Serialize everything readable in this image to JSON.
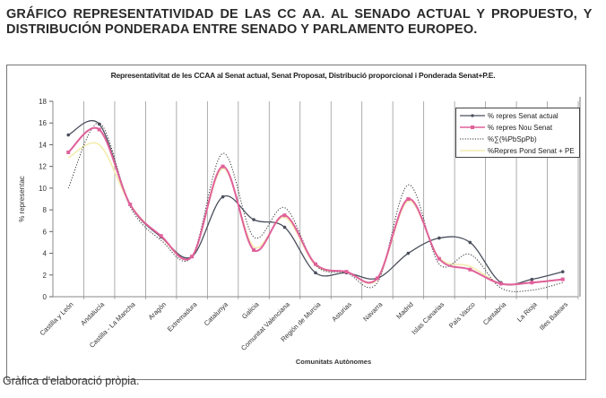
{
  "document": {
    "title_line1": "GRÁFICO REPRESENTATIVIDAD DE LAS CC AA. AL SENADO ACTUAL Y PROPUESTO, Y",
    "title_line2": "DISTRIBUCIÓN PONDERADA ENTRE SENADO Y PARLAMENTO EUROPEO.",
    "caption": "Gràfica d'elaboració pròpia."
  },
  "chart_data": {
    "type": "line",
    "title": "Representativitat de les CCAA al Senat actual, Senat Proposat, Distribució proporcional i Ponderada Senat+P.E.",
    "xlabel": "Comunitats Autònomes",
    "ylabel": "% representac",
    "ylim": [
      0,
      18
    ],
    "yticks": [
      0,
      2,
      4,
      6,
      8,
      10,
      12,
      14,
      16,
      18
    ],
    "grid": "vertical",
    "legend_position": "top-right",
    "categories": [
      "Castilla y León",
      "Andalucía",
      "Castilla - La Mancha",
      "Aragón",
      "Extremadura",
      "Catalunya",
      "Galicia",
      "Comunitat Valenciana",
      "Región de Murcia",
      "Asturias",
      "Navarra",
      "Madrid",
      "Islas Canarias",
      "País Vasco",
      "Cantabria",
      "La Rioja",
      "Illes Balears"
    ],
    "series": [
      {
        "name": "% repres Senat actual",
        "color": "#4a4f5c",
        "style": "solid-marker",
        "values": [
          14.9,
          15.9,
          8.5,
          5.5,
          3.7,
          9.2,
          7.1,
          6.4,
          2.2,
          2.2,
          1.7,
          4.0,
          5.4,
          5.0,
          1.3,
          1.6,
          2.3
        ]
      },
      {
        "name": "% repres Nou Senat",
        "color": "#e0609a",
        "style": "solid-square",
        "values": [
          13.3,
          15.4,
          8.5,
          5.6,
          3.7,
          12.0,
          4.3,
          7.5,
          3.0,
          2.3,
          1.7,
          9.0,
          3.5,
          2.5,
          1.2,
          1.3,
          1.6
        ]
      },
      {
        "name": "%∑(%PbSpPb)",
        "color": "#333333",
        "style": "dotted",
        "values": [
          10.0,
          16.0,
          8.3,
          5.2,
          3.7,
          13.2,
          5.5,
          8.2,
          2.9,
          2.2,
          1.3,
          10.3,
          3.0,
          3.9,
          0.8,
          0.6,
          1.3
        ]
      },
      {
        "name": "%Repres Pond Senat + PE",
        "color": "#f3ecb0",
        "style": "solid",
        "values": [
          12.8,
          14.0,
          8.5,
          5.5,
          3.7,
          11.8,
          4.6,
          7.3,
          2.9,
          2.3,
          1.6,
          8.8,
          3.6,
          2.8,
          1.2,
          1.3,
          1.6
        ]
      }
    ]
  }
}
